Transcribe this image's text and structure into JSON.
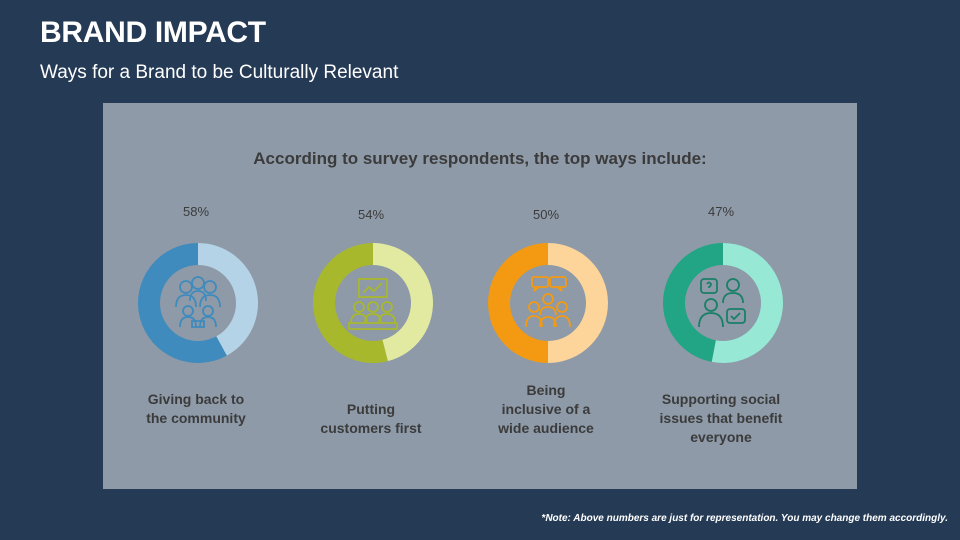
{
  "header": {
    "title": "BRAND IMPACT",
    "subtitle": "Ways for a Brand to be Culturally Relevant"
  },
  "panel": {
    "heading": "According to survey respondents, the top ways include:"
  },
  "items": [
    {
      "percent_label": "58%",
      "value": 58,
      "label_lines": [
        "Giving back to",
        "the community"
      ],
      "icon": "community-group-icon",
      "color_main": "#3f8bbd",
      "color_light": "#b5d3e6"
    },
    {
      "percent_label": "54%",
      "value": 54,
      "label_lines": [
        "Putting",
        "customers first"
      ],
      "icon": "customer-presentation-icon",
      "color_main": "#a8b82c",
      "color_light": "#e2eaa1"
    },
    {
      "percent_label": "50%",
      "value": 50,
      "label_lines": [
        "Being",
        "inclusive of a",
        "wide audience"
      ],
      "icon": "audience-speech-icon",
      "color_main": "#f39a12",
      "color_light": "#fdd49a"
    },
    {
      "percent_label": "47%",
      "value": 47,
      "label_lines": [
        "Supporting social",
        "issues that benefit",
        "everyone"
      ],
      "icon": "social-issues-icon",
      "color_main": "#21a585",
      "color_light": "#97e8d4"
    }
  ],
  "footer": {
    "note": "*Note: Above numbers are just for representation. You may change them accordingly."
  }
}
